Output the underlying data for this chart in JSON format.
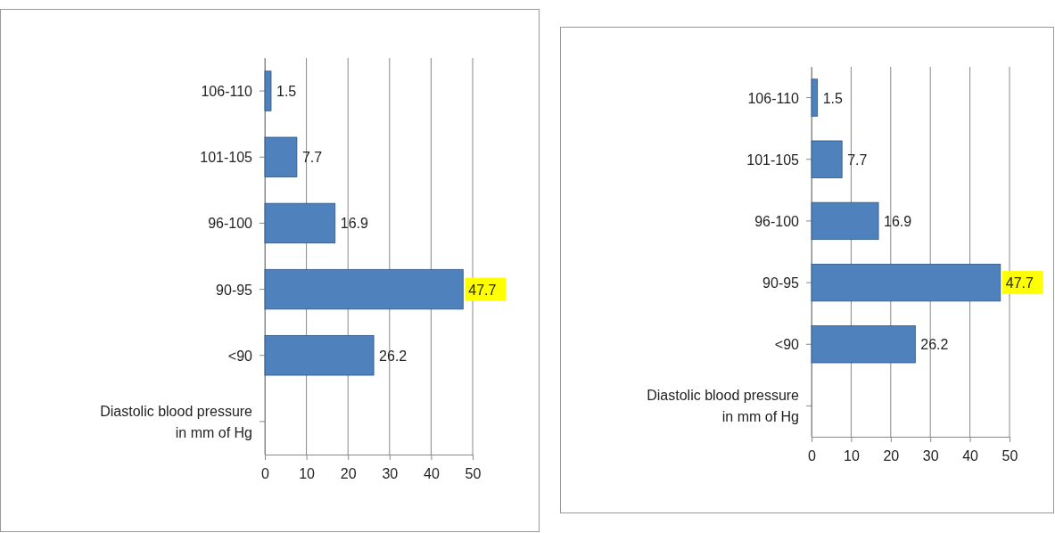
{
  "chart_data": [
    {
      "type": "bar",
      "orientation": "horizontal",
      "categories": [
        "106-110",
        "101-105",
        "96-100",
        "90-95",
        "<90",
        "Diastolic blood pressure in mm of Hg"
      ],
      "values": [
        1.5,
        7.7,
        16.9,
        47.7,
        26.2,
        null
      ],
      "color": "#4f81bd",
      "xlim": [
        0,
        50
      ],
      "xticks": [
        0,
        10,
        20,
        30,
        40,
        50
      ],
      "grid": "x",
      "data_labels": true
    },
    {
      "type": "bar",
      "orientation": "horizontal",
      "categories": [
        "106-110",
        "101-105",
        "96-100",
        "90-95",
        "<90",
        "Diastolic blood pressure in mm of Hg"
      ],
      "values": [
        1.5,
        7.7,
        16.9,
        47.7,
        26.2,
        null
      ],
      "color": "#4f81bd",
      "xlim": [
        0,
        50
      ],
      "xticks": [
        0,
        10,
        20,
        30,
        40,
        50
      ],
      "grid": "x",
      "data_labels": true
    }
  ]
}
